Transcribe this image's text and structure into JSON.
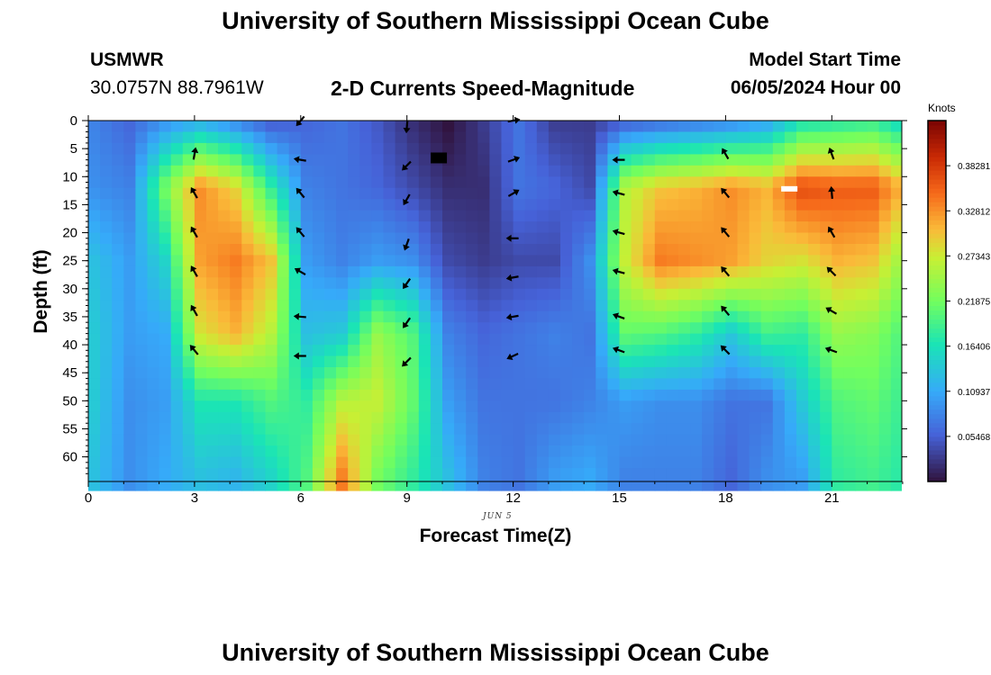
{
  "header": {
    "title": "University of Southern Mississippi Ocean Cube",
    "station": "USMWR",
    "coords": "30.0757N  88.7961W",
    "subtitle": "2-D Currents Speed-Magnitude",
    "model_label": "Model Start Time",
    "model_time": "06/05/2024 Hour 00"
  },
  "footer": {
    "title": "University of Southern Mississippi Ocean Cube"
  },
  "colorbar": {
    "unit": "Knots",
    "ticks": [
      "0.38281",
      "0.32812",
      "0.27343",
      "0.21875",
      "0.16406",
      "0.10937",
      "0.05468"
    ],
    "tick_values": [
      0.38281,
      0.32812,
      0.27343,
      0.21875,
      0.16406,
      0.10937,
      0.05468
    ],
    "range": [
      0,
      0.4375
    ],
    "colors": {
      "low": "#30123b",
      "blue": "#4686fb",
      "cyan": "#1ae4b6",
      "green": "#a2fc3c",
      "yellow": "#fabb3c",
      "orange": "#e3500d",
      "red": "#7a0403"
    }
  },
  "chart_data": {
    "type": "heatmap",
    "title": "2-D Currents Speed-Magnitude",
    "xlabel": "Forecast Time(Z)",
    "ylabel": "Depth (ft)",
    "date_label": "JUN 5",
    "xlim": [
      0,
      23
    ],
    "ylim": [
      0,
      64
    ],
    "x_ticks": [
      "0",
      "3",
      "6",
      "9",
      "12",
      "15",
      "18",
      "21"
    ],
    "y_ticks": [
      "0",
      "5",
      "10",
      "15",
      "20",
      "25",
      "30",
      "35",
      "40",
      "45",
      "50",
      "55",
      "60"
    ],
    "x_tick_values": [
      0,
      3,
      6,
      9,
      12,
      15,
      18,
      21
    ],
    "y_tick_values": [
      0,
      5,
      10,
      15,
      20,
      25,
      30,
      35,
      40,
      45,
      50,
      55,
      60
    ],
    "hours": [
      0,
      1,
      2,
      3,
      4,
      5,
      6,
      7,
      8,
      9,
      10,
      11,
      12,
      13,
      14,
      15,
      16,
      17,
      18,
      19,
      20,
      21,
      22,
      23
    ],
    "depth_profile": [
      0,
      12,
      25,
      38,
      50,
      64
    ],
    "speed_profiles": [
      [
        0.08,
        0.09,
        0.13,
        0.14,
        0.14,
        0.13
      ],
      [
        0.06,
        0.08,
        0.1,
        0.1,
        0.09,
        0.09
      ],
      [
        0.09,
        0.22,
        0.15,
        0.11,
        0.1,
        0.11
      ],
      [
        0.11,
        0.33,
        0.32,
        0.28,
        0.17,
        0.13
      ],
      [
        0.08,
        0.29,
        0.34,
        0.31,
        0.17,
        0.12
      ],
      [
        0.05,
        0.18,
        0.3,
        0.26,
        0.2,
        0.15
      ],
      [
        0.06,
        0.08,
        0.1,
        0.13,
        0.18,
        0.2
      ],
      [
        0.07,
        0.07,
        0.08,
        0.14,
        0.26,
        0.34
      ],
      [
        0.05,
        0.06,
        0.1,
        0.24,
        0.27,
        0.22
      ],
      [
        0.02,
        0.04,
        0.09,
        0.2,
        0.21,
        0.18
      ],
      [
        0.0,
        0.02,
        0.04,
        0.08,
        0.1,
        0.13
      ],
      [
        0.03,
        0.02,
        0.03,
        0.06,
        0.07,
        0.08
      ],
      [
        0.07,
        0.07,
        0.04,
        0.07,
        0.07,
        0.07
      ],
      [
        0.03,
        0.06,
        0.04,
        0.08,
        0.07,
        0.1
      ],
      [
        0.03,
        0.04,
        0.09,
        0.07,
        0.08,
        0.11
      ],
      [
        0.05,
        0.26,
        0.27,
        0.21,
        0.1,
        0.08
      ],
      [
        0.06,
        0.3,
        0.34,
        0.2,
        0.09,
        0.08
      ],
      [
        0.07,
        0.31,
        0.33,
        0.18,
        0.09,
        0.08
      ],
      [
        0.08,
        0.33,
        0.32,
        0.14,
        0.07,
        0.06
      ],
      [
        0.1,
        0.31,
        0.29,
        0.19,
        0.07,
        0.09
      ],
      [
        0.16,
        0.37,
        0.28,
        0.18,
        0.14,
        0.1
      ],
      [
        0.17,
        0.36,
        0.31,
        0.24,
        0.2,
        0.18
      ],
      [
        0.18,
        0.36,
        0.3,
        0.23,
        0.21,
        0.19
      ],
      [
        0.14,
        0.3,
        0.23,
        0.19,
        0.18,
        0.17
      ]
    ],
    "vectors": [
      {
        "hour": 3,
        "depth": 6,
        "dir": 10
      },
      {
        "hour": 3,
        "depth": 13,
        "dir": 330
      },
      {
        "hour": 3,
        "depth": 20,
        "dir": 330
      },
      {
        "hour": 3,
        "depth": 27,
        "dir": 330
      },
      {
        "hour": 3,
        "depth": 34,
        "dir": 330
      },
      {
        "hour": 3,
        "depth": 41,
        "dir": 320
      },
      {
        "hour": 6,
        "depth": 0,
        "dir": 220
      },
      {
        "hour": 6,
        "depth": 7,
        "dir": 280
      },
      {
        "hour": 6,
        "depth": 13,
        "dir": 320
      },
      {
        "hour": 6,
        "depth": 20,
        "dir": 320
      },
      {
        "hour": 6,
        "depth": 27,
        "dir": 300
      },
      {
        "hour": 6,
        "depth": 35,
        "dir": 275
      },
      {
        "hour": 6,
        "depth": 42,
        "dir": 270
      },
      {
        "hour": 9,
        "depth": 1,
        "dir": 185
      },
      {
        "hour": 9,
        "depth": 8,
        "dir": 225
      },
      {
        "hour": 9,
        "depth": 14,
        "dir": 210
      },
      {
        "hour": 9,
        "depth": 22,
        "dir": 200
      },
      {
        "hour": 9,
        "depth": 29,
        "dir": 215
      },
      {
        "hour": 9,
        "depth": 36,
        "dir": 215
      },
      {
        "hour": 9,
        "depth": 43,
        "dir": 225
      },
      {
        "hour": 12,
        "depth": 0,
        "dir": 80
      },
      {
        "hour": 12,
        "depth": 7,
        "dir": 70
      },
      {
        "hour": 12,
        "depth": 13,
        "dir": 60
      },
      {
        "hour": 12,
        "depth": 21,
        "dir": 270
      },
      {
        "hour": 12,
        "depth": 28,
        "dir": 260
      },
      {
        "hour": 12,
        "depth": 35,
        "dir": 260
      },
      {
        "hour": 12,
        "depth": 42,
        "dir": 245
      },
      {
        "hour": 15,
        "depth": 7,
        "dir": 270
      },
      {
        "hour": 15,
        "depth": 13,
        "dir": 285
      },
      {
        "hour": 15,
        "depth": 20,
        "dir": 285
      },
      {
        "hour": 15,
        "depth": 27,
        "dir": 285
      },
      {
        "hour": 15,
        "depth": 35,
        "dir": 290
      },
      {
        "hour": 15,
        "depth": 41,
        "dir": 290
      },
      {
        "hour": 18,
        "depth": 6,
        "dir": 330
      },
      {
        "hour": 18,
        "depth": 13,
        "dir": 320
      },
      {
        "hour": 18,
        "depth": 20,
        "dir": 320
      },
      {
        "hour": 18,
        "depth": 27,
        "dir": 320
      },
      {
        "hour": 18,
        "depth": 34,
        "dir": 320
      },
      {
        "hour": 18,
        "depth": 41,
        "dir": 315
      },
      {
        "hour": 21,
        "depth": 6,
        "dir": 340
      },
      {
        "hour": 21,
        "depth": 13,
        "dir": 355
      },
      {
        "hour": 21,
        "depth": 20,
        "dir": 330
      },
      {
        "hour": 21,
        "depth": 27,
        "dir": 315
      },
      {
        "hour": 21,
        "depth": 34,
        "dir": 300
      },
      {
        "hour": 21,
        "depth": 41,
        "dir": 290
      }
    ],
    "markers": [
      {
        "hour": 9.9,
        "depth": 6.5,
        "color": "#000000"
      },
      {
        "hour": 19.8,
        "depth": 12.5,
        "color": "#ffffff"
      }
    ]
  }
}
